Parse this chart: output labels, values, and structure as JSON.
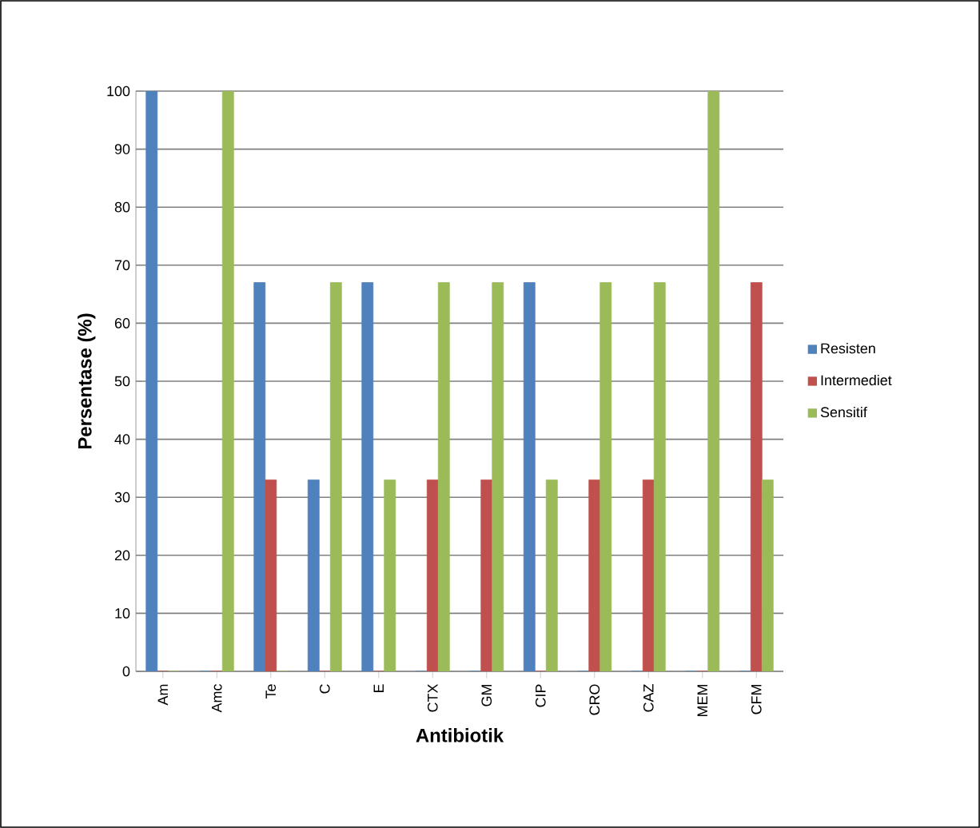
{
  "chart_data": {
    "type": "bar",
    "xlabel": "Antibiotik",
    "ylabel": "Persentase (%)",
    "categories": [
      "Am",
      "Amc",
      "Te",
      "C",
      "E",
      "CTX",
      "GM",
      "CIP",
      "CRO",
      "CAZ",
      "MEM",
      "CFM"
    ],
    "series": [
      {
        "name": "Resisten",
        "color": "#4f81bd",
        "values": [
          100,
          0,
          67,
          33,
          67,
          0,
          0,
          67,
          0,
          0,
          0,
          0
        ]
      },
      {
        "name": "Intermediet",
        "color": "#c0504d",
        "values": [
          0,
          0,
          33,
          0,
          0,
          33,
          33,
          0,
          33,
          33,
          0,
          67
        ]
      },
      {
        "name": "Sensitif",
        "color": "#9bbb59",
        "values": [
          0,
          100,
          0,
          67,
          33,
          67,
          67,
          33,
          67,
          67,
          100,
          33
        ]
      }
    ],
    "ylim": [
      0,
      100
    ],
    "yticks": [
      0,
      10,
      20,
      30,
      40,
      50,
      60,
      70,
      80,
      90,
      100
    ],
    "grid": "y",
    "legend": "right"
  }
}
